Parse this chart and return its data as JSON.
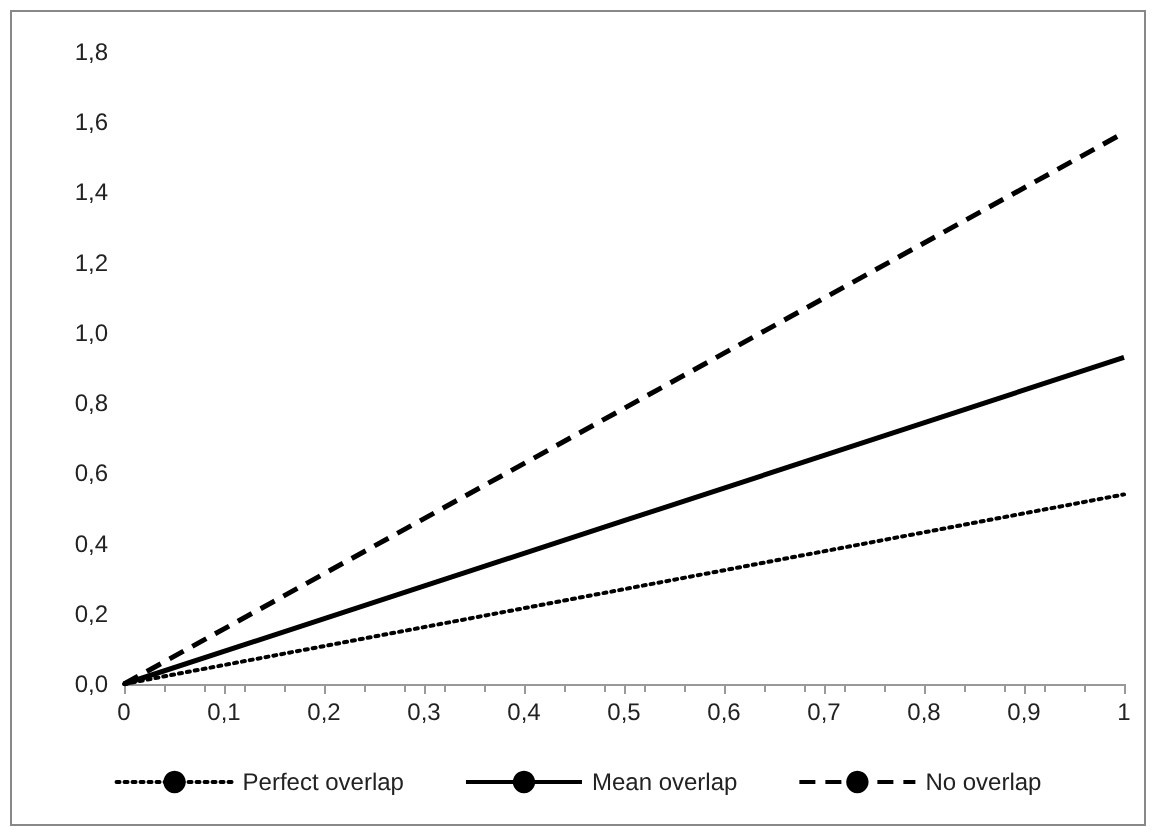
{
  "chart_data": {
    "type": "line",
    "x": [
      0,
      0.5,
      1
    ],
    "series": [
      {
        "name": "Perfect overlap",
        "color": "#000000",
        "line_style": "dotted",
        "values": [
          0,
          0.27,
          0.54
        ]
      },
      {
        "name": "Mean overlap",
        "color": "#000000",
        "line_style": "solid",
        "values": [
          0,
          0.465,
          0.93
        ]
      },
      {
        "name": "No overlap",
        "color": "#000000",
        "line_style": "dashed",
        "values": [
          0,
          0.785,
          1.57
        ]
      }
    ],
    "xlim": [
      0,
      1
    ],
    "xticks": [
      0,
      {
        "value": 0.1,
        "label": "0,1"
      },
      {
        "value": 0.2,
        "label": "0,2"
      },
      {
        "value": 0.3,
        "label": "0,3"
      },
      {
        "value": 0.4,
        "label": "0,4"
      },
      {
        "value": 0.5,
        "label": "0,5"
      },
      {
        "value": 0.6,
        "label": "0,6"
      },
      {
        "value": 0.7,
        "label": "0,7"
      },
      {
        "value": 0.8,
        "label": "0,8"
      },
      {
        "value": 0.9,
        "label": "0,9"
      },
      1
    ],
    "ylim": [
      0,
      1.8
    ],
    "yticks": [
      {
        "value": 0,
        "label": "0,0"
      },
      {
        "value": 0.2,
        "label": "0,2"
      },
      {
        "value": 0.4,
        "label": "0,4"
      },
      {
        "value": 0.6,
        "label": "0,6"
      },
      {
        "value": 0.8,
        "label": "0,8"
      },
      {
        "value": 1,
        "label": "1,0"
      },
      {
        "value": 1.2,
        "label": "1,2"
      },
      {
        "value": 1.4,
        "label": "1,4"
      },
      {
        "value": 1.6,
        "label": "1,6"
      },
      {
        "value": 1.8,
        "label": "1,8"
      }
    ],
    "grid": false,
    "legend": "bottom",
    "marker": "none"
  }
}
